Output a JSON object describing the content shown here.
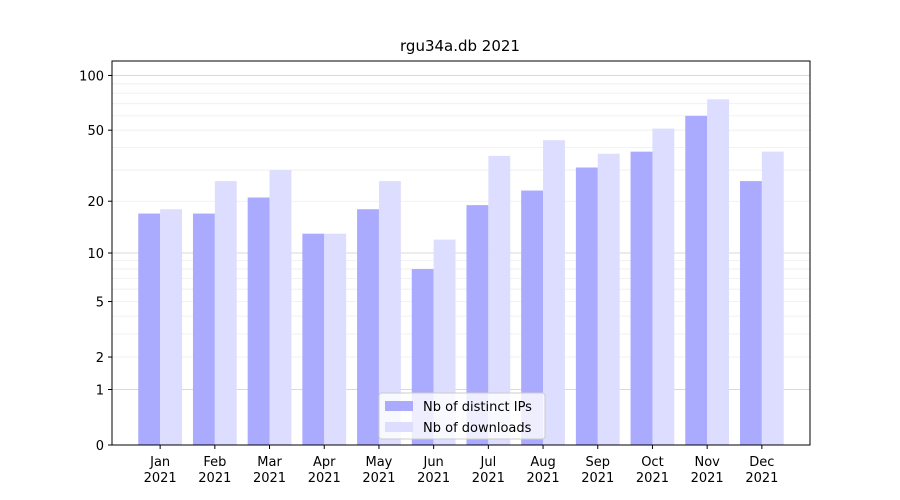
{
  "chart_data": {
    "type": "bar",
    "title": "rgu34a.db 2021",
    "xlabel": "",
    "ylabel": "",
    "y_scale": "symlog",
    "ylim": [
      0,
      120
    ],
    "y_ticks": [
      0,
      1,
      2,
      5,
      10,
      20,
      50,
      100
    ],
    "grid": true,
    "legend_position": "bottom-center",
    "categories": [
      "Jan\n2021",
      "Feb\n2021",
      "Mar\n2021",
      "Apr\n2021",
      "May\n2021",
      "Jun\n2021",
      "Jul\n2021",
      "Aug\n2021",
      "Sep\n2021",
      "Oct\n2021",
      "Nov\n2021",
      "Dec\n2021"
    ],
    "series": [
      {
        "name": "Nb of distinct IPs",
        "color": "#aaaaff",
        "values": [
          17,
          17,
          21,
          13,
          18,
          8,
          19,
          23,
          31,
          38,
          60,
          26
        ]
      },
      {
        "name": "Nb of downloads",
        "color": "#ddddff",
        "values": [
          18,
          26,
          30,
          13,
          26,
          12,
          36,
          44,
          37,
          51,
          74,
          38
        ]
      }
    ]
  }
}
